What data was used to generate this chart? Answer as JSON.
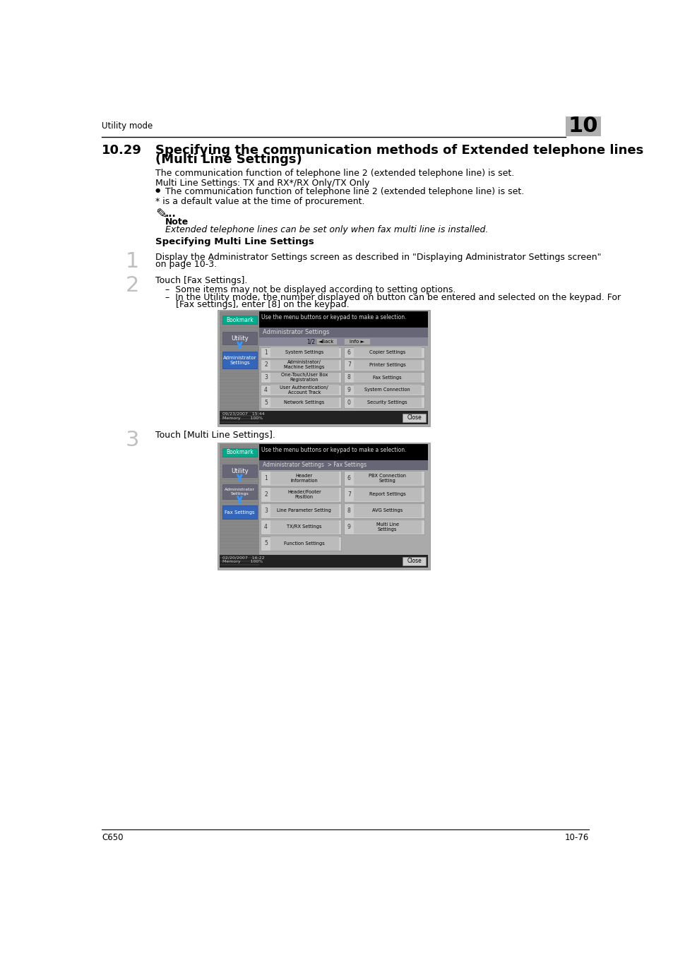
{
  "page_bg": "#ffffff",
  "header_text": "Utility mode",
  "chapter_num": "10",
  "footer_left": "C650",
  "footer_right": "10-76",
  "section_num": "10.29",
  "section_title_line1": "Specifying the communication methods of Extended telephone lines",
  "section_title_line2": "(Multi Line Settings)",
  "note_label": "Note",
  "note_text": "Extended telephone lines can be set only when fax multi line is installed.",
  "subsection_title": "Specifying Multi Line Settings",
  "step1_text": "Display the Administrator Settings screen as described in \"Displaying Administrator Settings screen\"\non page 10-3.",
  "step2_text": "Touch [Fax Settings].",
  "step2_sub1": "Some items may not be displayed according to setting options.",
  "step2_sub2a": "In the Utility mode, the number displayed on button can be entered and selected on the keypad. For",
  "step2_sub2b": "[Fax settings], enter [8] on the keypad.",
  "step3_text": "Touch [Multi Line Settings].",
  "scr1_msg": "Use the menu buttons or keypad to make a selection.",
  "scr1_title": "Administrator Settings",
  "scr1_nav": "1/2",
  "scr1_btns": [
    [
      1,
      "System Settings",
      6,
      "Copier Settings"
    ],
    [
      2,
      "Administrator/\nMachine Settings",
      7,
      "Printer Settings"
    ],
    [
      3,
      "One-Touch/User Box\nRegistration",
      8,
      "Fax Settings"
    ],
    [
      4,
      "User Authentication/\nAccount Track",
      9,
      "System Connection"
    ],
    [
      5,
      "Network Settings",
      0,
      "Security Settings"
    ]
  ],
  "scr1_time": "09/23/2007   15:44\nMemory       100%",
  "scr2_msg": "Use the menu buttons or keypad to make a selection.",
  "scr2_title": "Administrator Settings  > Fax Settings",
  "scr2_btns": [
    [
      1,
      "Header\nInformation",
      6,
      "PBX Connection\nSetting"
    ],
    [
      2,
      "Header/Footer\nPosition",
      7,
      "Report Settings"
    ],
    [
      3,
      "Line Parameter Setting",
      8,
      "AVG Settings"
    ],
    [
      4,
      "TX/RX Settings",
      9,
      "Multi Line\nSettings"
    ],
    [
      5,
      "Function Settings",
      -1,
      ""
    ]
  ],
  "scr2_time": "02/20/2007   16:22\nMemory       100%",
  "sidebar_bg": "#888888",
  "screen_bg": "#333333",
  "screen_dark": "#111111",
  "screen_mid": "#555555",
  "btn_bg": "#999999",
  "btn_dark_bg": "#666666",
  "bookmark_color": "#00aa88",
  "active_btn_color": "#3366bb",
  "sidebar_line_color": "#777777"
}
